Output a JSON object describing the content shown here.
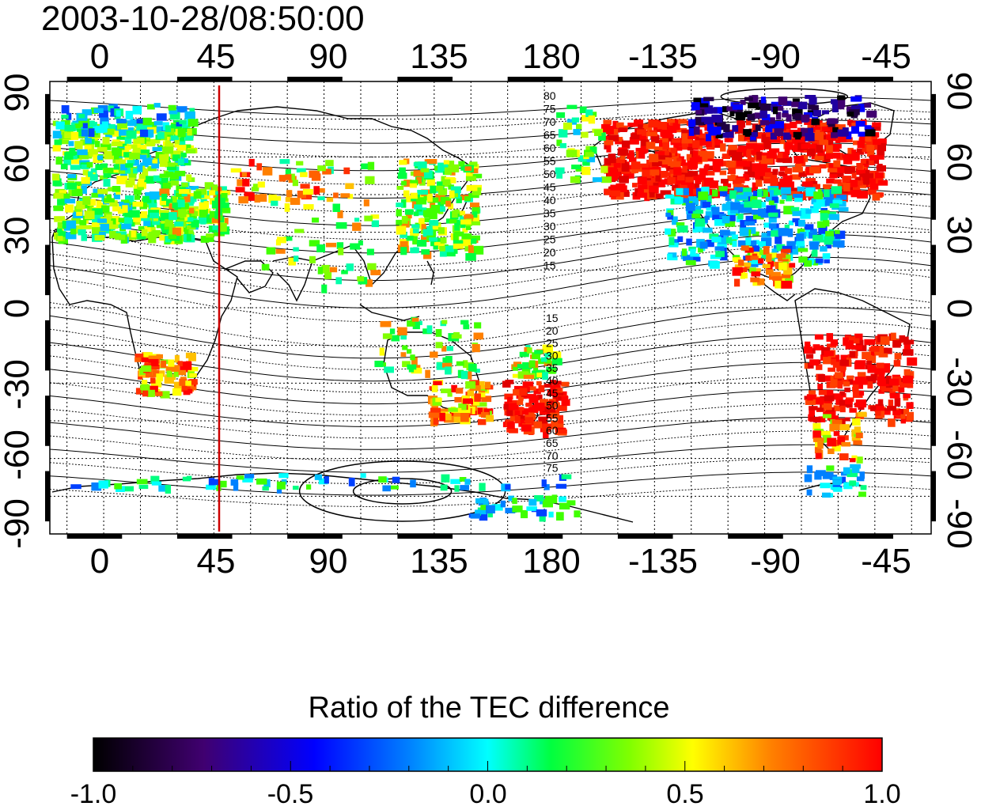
{
  "header": {
    "timestamp": "2003-10-28/08:50:00"
  },
  "map": {
    "projection": "cylindrical equidistant",
    "lon_range_deg": [
      -22,
      338
    ],
    "lat_range_deg": [
      -90,
      90
    ],
    "top_ticks": [
      "0",
      "45",
      "90",
      "135",
      "180",
      "-135",
      "-90",
      "-45"
    ],
    "bottom_ticks": [
      "0",
      "45",
      "90",
      "135",
      "180",
      "-135",
      "-90",
      "-45"
    ],
    "left_ticks": [
      "90",
      "60",
      "30",
      "0",
      "-30",
      "-60",
      "-90"
    ],
    "right_ticks": [
      "90",
      "60",
      "30",
      "0",
      "-30",
      "-60",
      "-90"
    ],
    "grid": "dotted, 15 deg",
    "marker_line": {
      "longitude_deg": 48,
      "color": "#cc0000"
    },
    "contour_labels_north": [
      "80",
      "75",
      "70",
      "65",
      "60",
      "55",
      "50",
      "45",
      "40",
      "35",
      "30",
      "25",
      "20",
      "15"
    ],
    "contour_labels_south": [
      "15",
      "20",
      "25",
      "30",
      "35",
      "40",
      "45",
      "50",
      "55",
      "60",
      "65",
      "70",
      "75"
    ]
  },
  "colorbar": {
    "title": "Ratio of the TEC difference",
    "ticks": [
      "-1.0",
      "-0.5",
      "0.0",
      "0.5",
      "1.0"
    ],
    "range": [
      -1.0,
      1.0
    ],
    "colors": [
      "#000000",
      "#400070",
      "#0000ff",
      "#00ffff",
      "#00ff00",
      "#ffff00",
      "#ff8000",
      "#ff0000"
    ]
  }
}
